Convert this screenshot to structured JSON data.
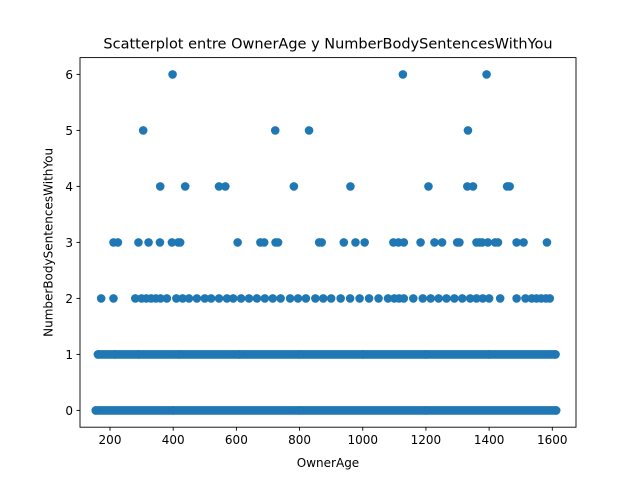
{
  "chart_data": {
    "type": "scatter",
    "title": "Scatterplot entre OwnerAge y NumberBodySentencesWithYou",
    "xlabel": "OwnerAge",
    "ylabel": "NumberBodySentencesWithYou",
    "xlim": [
      105,
      1675
    ],
    "ylim": [
      -0.3,
      6.3
    ],
    "xticks": [
      200,
      400,
      600,
      800,
      1000,
      1200,
      1400,
      1600
    ],
    "yticks": [
      0,
      1,
      2,
      3,
      4,
      5,
      6
    ],
    "marker_color": "#1f77b4",
    "grid": false,
    "legend": "none",
    "series": [
      {
        "points": [
          [
            398,
            6
          ],
          [
            1127,
            6
          ],
          [
            1392,
            6
          ],
          [
            305,
            5
          ],
          [
            723,
            5
          ],
          [
            830,
            5
          ],
          [
            1333,
            5
          ],
          [
            359,
            4
          ],
          [
            438,
            4
          ],
          [
            545,
            4
          ],
          [
            565,
            4
          ],
          [
            782,
            4
          ],
          [
            961,
            4
          ],
          [
            1208,
            4
          ],
          [
            1331,
            4
          ],
          [
            1349,
            4
          ],
          [
            1457,
            4
          ],
          [
            1465,
            4
          ],
          [
            211,
            3
          ],
          [
            225,
            3
          ],
          [
            290,
            3
          ],
          [
            322,
            3
          ],
          [
            358,
            3
          ],
          [
            396,
            3
          ],
          [
            416,
            3
          ],
          [
            422,
            3
          ],
          [
            604,
            3
          ],
          [
            676,
            3
          ],
          [
            688,
            3
          ],
          [
            724,
            3
          ],
          [
            732,
            3
          ],
          [
            862,
            3
          ],
          [
            870,
            3
          ],
          [
            940,
            3
          ],
          [
            977,
            3
          ],
          [
            1006,
            3
          ],
          [
            1097,
            3
          ],
          [
            1113,
            3
          ],
          [
            1130,
            3
          ],
          [
            1183,
            3
          ],
          [
            1227,
            3
          ],
          [
            1251,
            3
          ],
          [
            1299,
            3
          ],
          [
            1306,
            3
          ],
          [
            1360,
            3
          ],
          [
            1370,
            3
          ],
          [
            1378,
            3
          ],
          [
            1396,
            3
          ],
          [
            1419,
            3
          ],
          [
            1428,
            3
          ],
          [
            1487,
            3
          ],
          [
            1509,
            3
          ],
          [
            1583,
            3
          ],
          [
            172,
            2
          ],
          [
            211,
            2
          ],
          [
            280,
            2
          ],
          [
            300,
            2
          ],
          [
            315,
            2
          ],
          [
            330,
            2
          ],
          [
            345,
            2
          ],
          [
            360,
            2
          ],
          [
            380,
            2
          ],
          [
            410,
            2
          ],
          [
            430,
            2
          ],
          [
            450,
            2
          ],
          [
            475,
            2
          ],
          [
            500,
            2
          ],
          [
            520,
            2
          ],
          [
            545,
            2
          ],
          [
            570,
            2
          ],
          [
            590,
            2
          ],
          [
            615,
            2
          ],
          [
            640,
            2
          ],
          [
            665,
            2
          ],
          [
            690,
            2
          ],
          [
            715,
            2
          ],
          [
            740,
            2
          ],
          [
            770,
            2
          ],
          [
            795,
            2
          ],
          [
            820,
            2
          ],
          [
            850,
            2
          ],
          [
            875,
            2
          ],
          [
            900,
            2
          ],
          [
            930,
            2
          ],
          [
            960,
            2
          ],
          [
            990,
            2
          ],
          [
            1020,
            2
          ],
          [
            1050,
            2
          ],
          [
            1080,
            2
          ],
          [
            1100,
            2
          ],
          [
            1115,
            2
          ],
          [
            1130,
            2
          ],
          [
            1160,
            2
          ],
          [
            1190,
            2
          ],
          [
            1215,
            2
          ],
          [
            1240,
            2
          ],
          [
            1265,
            2
          ],
          [
            1290,
            2
          ],
          [
            1315,
            2
          ],
          [
            1340,
            2
          ],
          [
            1360,
            2
          ],
          [
            1380,
            2
          ],
          [
            1400,
            2
          ],
          [
            1435,
            2
          ],
          [
            1487,
            2
          ],
          [
            1515,
            2
          ],
          [
            1535,
            2
          ],
          [
            1550,
            2
          ],
          [
            1565,
            2
          ],
          [
            1580,
            2
          ],
          [
            1592,
            2
          ],
          [
            162,
            1
          ],
          [
            215,
            1
          ],
          [
            290,
            1
          ],
          [
            420,
            1
          ],
          [
            610,
            1
          ],
          [
            800,
            1
          ],
          [
            1000,
            1
          ],
          [
            1200,
            1
          ],
          [
            1400,
            1
          ],
          [
            1610,
            1
          ],
          [
            155,
            0
          ],
          [
            400,
            0
          ],
          [
            800,
            0
          ],
          [
            1200,
            0
          ],
          [
            1612,
            0
          ]
        ]
      }
    ],
    "dense_bands": [
      {
        "y": 1,
        "x_from": 162,
        "x_to": 1610
      },
      {
        "y": 0,
        "x_from": 155,
        "x_to": 1612
      }
    ]
  }
}
